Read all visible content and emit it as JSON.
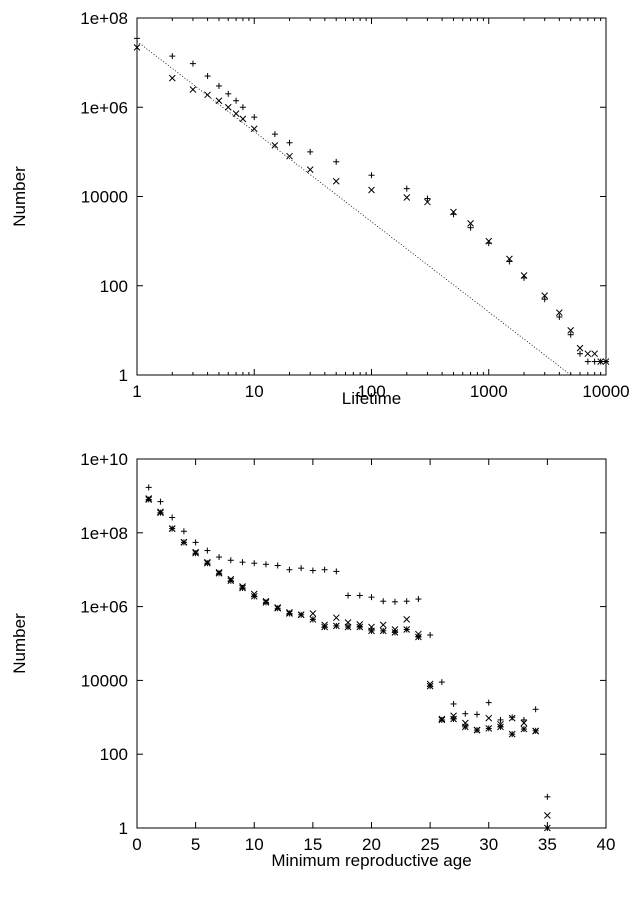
{
  "chart_data": [
    {
      "type": "scatter",
      "xlabel": "Lifetime",
      "ylabel": "Number",
      "x_scale": "log",
      "y_scale": "log",
      "xlim": [
        1,
        10000
      ],
      "ylim": [
        1,
        100000000
      ],
      "x_ticks": [
        "1",
        "10",
        "100",
        "1000",
        "10000"
      ],
      "y_ticks": [
        "1",
        "100",
        "10000",
        "1e+06",
        "1e+08"
      ],
      "grid": false,
      "legend": "none",
      "series": [
        {
          "marker": "+",
          "points": [
            [
              1,
              35000000
            ],
            [
              2,
              14000000
            ],
            [
              3,
              9500000
            ],
            [
              4,
              5000000
            ],
            [
              5,
              3000000
            ],
            [
              6,
              2000000
            ],
            [
              7,
              1400000
            ],
            [
              8,
              1000000
            ],
            [
              10,
              600000
            ],
            [
              15,
              250000
            ],
            [
              20,
              160000
            ],
            [
              30,
              100000
            ],
            [
              50,
              60000
            ],
            [
              100,
              30000
            ],
            [
              200,
              15000
            ],
            [
              300,
              9000
            ],
            [
              500,
              4000
            ],
            [
              700,
              2000
            ],
            [
              1000,
              900
            ],
            [
              1500,
              350
            ],
            [
              2000,
              150
            ],
            [
              3000,
              50
            ],
            [
              4000,
              20
            ],
            [
              5000,
              8
            ],
            [
              6000,
              3
            ],
            [
              7000,
              2
            ],
            [
              8000,
              2
            ],
            [
              9000,
              2
            ],
            [
              10000,
              2
            ]
          ]
        },
        {
          "marker": "x",
          "points": [
            [
              1,
              22000000
            ],
            [
              2,
              4500000
            ],
            [
              3,
              2500000
            ],
            [
              4,
              1900000
            ],
            [
              5,
              1400000
            ],
            [
              6,
              1000000
            ],
            [
              7,
              720000
            ],
            [
              8,
              550000
            ],
            [
              10,
              330000
            ],
            [
              15,
              140000
            ],
            [
              20,
              80000
            ],
            [
              30,
              40000
            ],
            [
              50,
              22000
            ],
            [
              100,
              14000
            ],
            [
              200,
              9500
            ],
            [
              300,
              7500
            ],
            [
              500,
              4500
            ],
            [
              700,
              2500
            ],
            [
              1000,
              1000
            ],
            [
              1500,
              400
            ],
            [
              2000,
              170
            ],
            [
              3000,
              60
            ],
            [
              4000,
              25
            ],
            [
              5000,
              10
            ],
            [
              6000,
              4
            ],
            [
              7000,
              3
            ],
            [
              8000,
              3
            ],
            [
              9000,
              2
            ],
            [
              10000,
              2
            ]
          ]
        }
      ],
      "reference_line": {
        "style": "dotted",
        "points": [
          [
            1,
            30000000
          ],
          [
            5000,
            1
          ]
        ]
      }
    },
    {
      "type": "scatter",
      "xlabel": "Minimum reproductive age",
      "ylabel": "Number",
      "x_scale": "linear",
      "y_scale": "log",
      "xlim": [
        0,
        40
      ],
      "ylim": [
        1,
        10000000000
      ],
      "x_ticks": [
        "0",
        "5",
        "10",
        "15",
        "20",
        "25",
        "30",
        "35",
        "40"
      ],
      "y_ticks": [
        "1",
        "100",
        "10000",
        "1e+06",
        "1e+08",
        "1e+10"
      ],
      "grid": false,
      "legend": "none",
      "series": [
        {
          "marker": "+",
          "points": [
            [
              1,
              1700000000
            ],
            [
              2,
              700000000
            ],
            [
              3,
              260000000
            ],
            [
              4,
              110000000
            ],
            [
              5,
              55000000
            ],
            [
              6,
              33000000
            ],
            [
              7,
              22000000
            ],
            [
              8,
              18000000
            ],
            [
              9,
              16000000
            ],
            [
              10,
              15000000
            ],
            [
              11,
              14000000
            ],
            [
              12,
              13000000
            ],
            [
              13,
              10000000
            ],
            [
              14,
              11000000
            ],
            [
              15,
              9500000
            ],
            [
              16,
              10000000
            ],
            [
              17,
              9000000
            ],
            [
              18,
              2000000
            ],
            [
              19,
              2000000
            ],
            [
              20,
              1800000
            ],
            [
              21,
              1400000
            ],
            [
              22,
              1350000
            ],
            [
              23,
              1400000
            ],
            [
              24,
              1600000
            ],
            [
              25,
              170000
            ],
            [
              26,
              9000
            ],
            [
              27,
              2300
            ],
            [
              28,
              1250
            ],
            [
              29,
              1200
            ],
            [
              30,
              2500
            ],
            [
              31,
              850
            ],
            [
              32,
              1000
            ],
            [
              33,
              850
            ],
            [
              34,
              1650
            ],
            [
              35,
              7
            ]
          ]
        },
        {
          "marker": "x",
          "points": [
            [
              1,
              850000000
            ],
            [
              2,
              370000000
            ],
            [
              3,
              130000000
            ],
            [
              4,
              56000000
            ],
            [
              5,
              30000000
            ],
            [
              6,
              16000000
            ],
            [
              7,
              8500000
            ],
            [
              8,
              5500000
            ],
            [
              9,
              3500000
            ],
            [
              10,
              2200000
            ],
            [
              11,
              1400000
            ],
            [
              12,
              950000
            ],
            [
              13,
              700000
            ],
            [
              14,
              600000
            ],
            [
              15,
              650000
            ],
            [
              16,
              320000
            ],
            [
              17,
              500000
            ],
            [
              18,
              370000
            ],
            [
              19,
              330000
            ],
            [
              20,
              280000
            ],
            [
              21,
              320000
            ],
            [
              22,
              240000
            ],
            [
              23,
              450000
            ],
            [
              24,
              180000
            ],
            [
              25,
              8000
            ],
            [
              26,
              900
            ],
            [
              27,
              1100
            ],
            [
              28,
              700
            ],
            [
              29,
              450
            ],
            [
              30,
              950
            ],
            [
              31,
              650
            ],
            [
              32,
              950
            ],
            [
              33,
              700
            ],
            [
              34,
              420
            ],
            [
              35,
              2.2
            ]
          ]
        },
        {
          "marker": "*",
          "points": [
            [
              1,
              800000000
            ],
            [
              2,
              350000000
            ],
            [
              3,
              130000000
            ],
            [
              4,
              55000000
            ],
            [
              5,
              28000000
            ],
            [
              6,
              15000000
            ],
            [
              7,
              8000000
            ],
            [
              8,
              5000000
            ],
            [
              9,
              3200000
            ],
            [
              10,
              1900000
            ],
            [
              11,
              1300000
            ],
            [
              12,
              900000
            ],
            [
              13,
              650000
            ],
            [
              14,
              600000
            ],
            [
              15,
              450000
            ],
            [
              16,
              280000
            ],
            [
              17,
              300000
            ],
            [
              18,
              280000
            ],
            [
              19,
              280000
            ],
            [
              20,
              220000
            ],
            [
              21,
              220000
            ],
            [
              22,
              200000
            ],
            [
              23,
              240000
            ],
            [
              24,
              150000
            ],
            [
              25,
              7000
            ],
            [
              26,
              850
            ],
            [
              27,
              900
            ],
            [
              28,
              550
            ],
            [
              29,
              450
            ],
            [
              30,
              500
            ],
            [
              31,
              550
            ],
            [
              32,
              350
            ],
            [
              33,
              480
            ],
            [
              34,
              430
            ],
            [
              35,
              1
            ]
          ]
        }
      ]
    }
  ]
}
